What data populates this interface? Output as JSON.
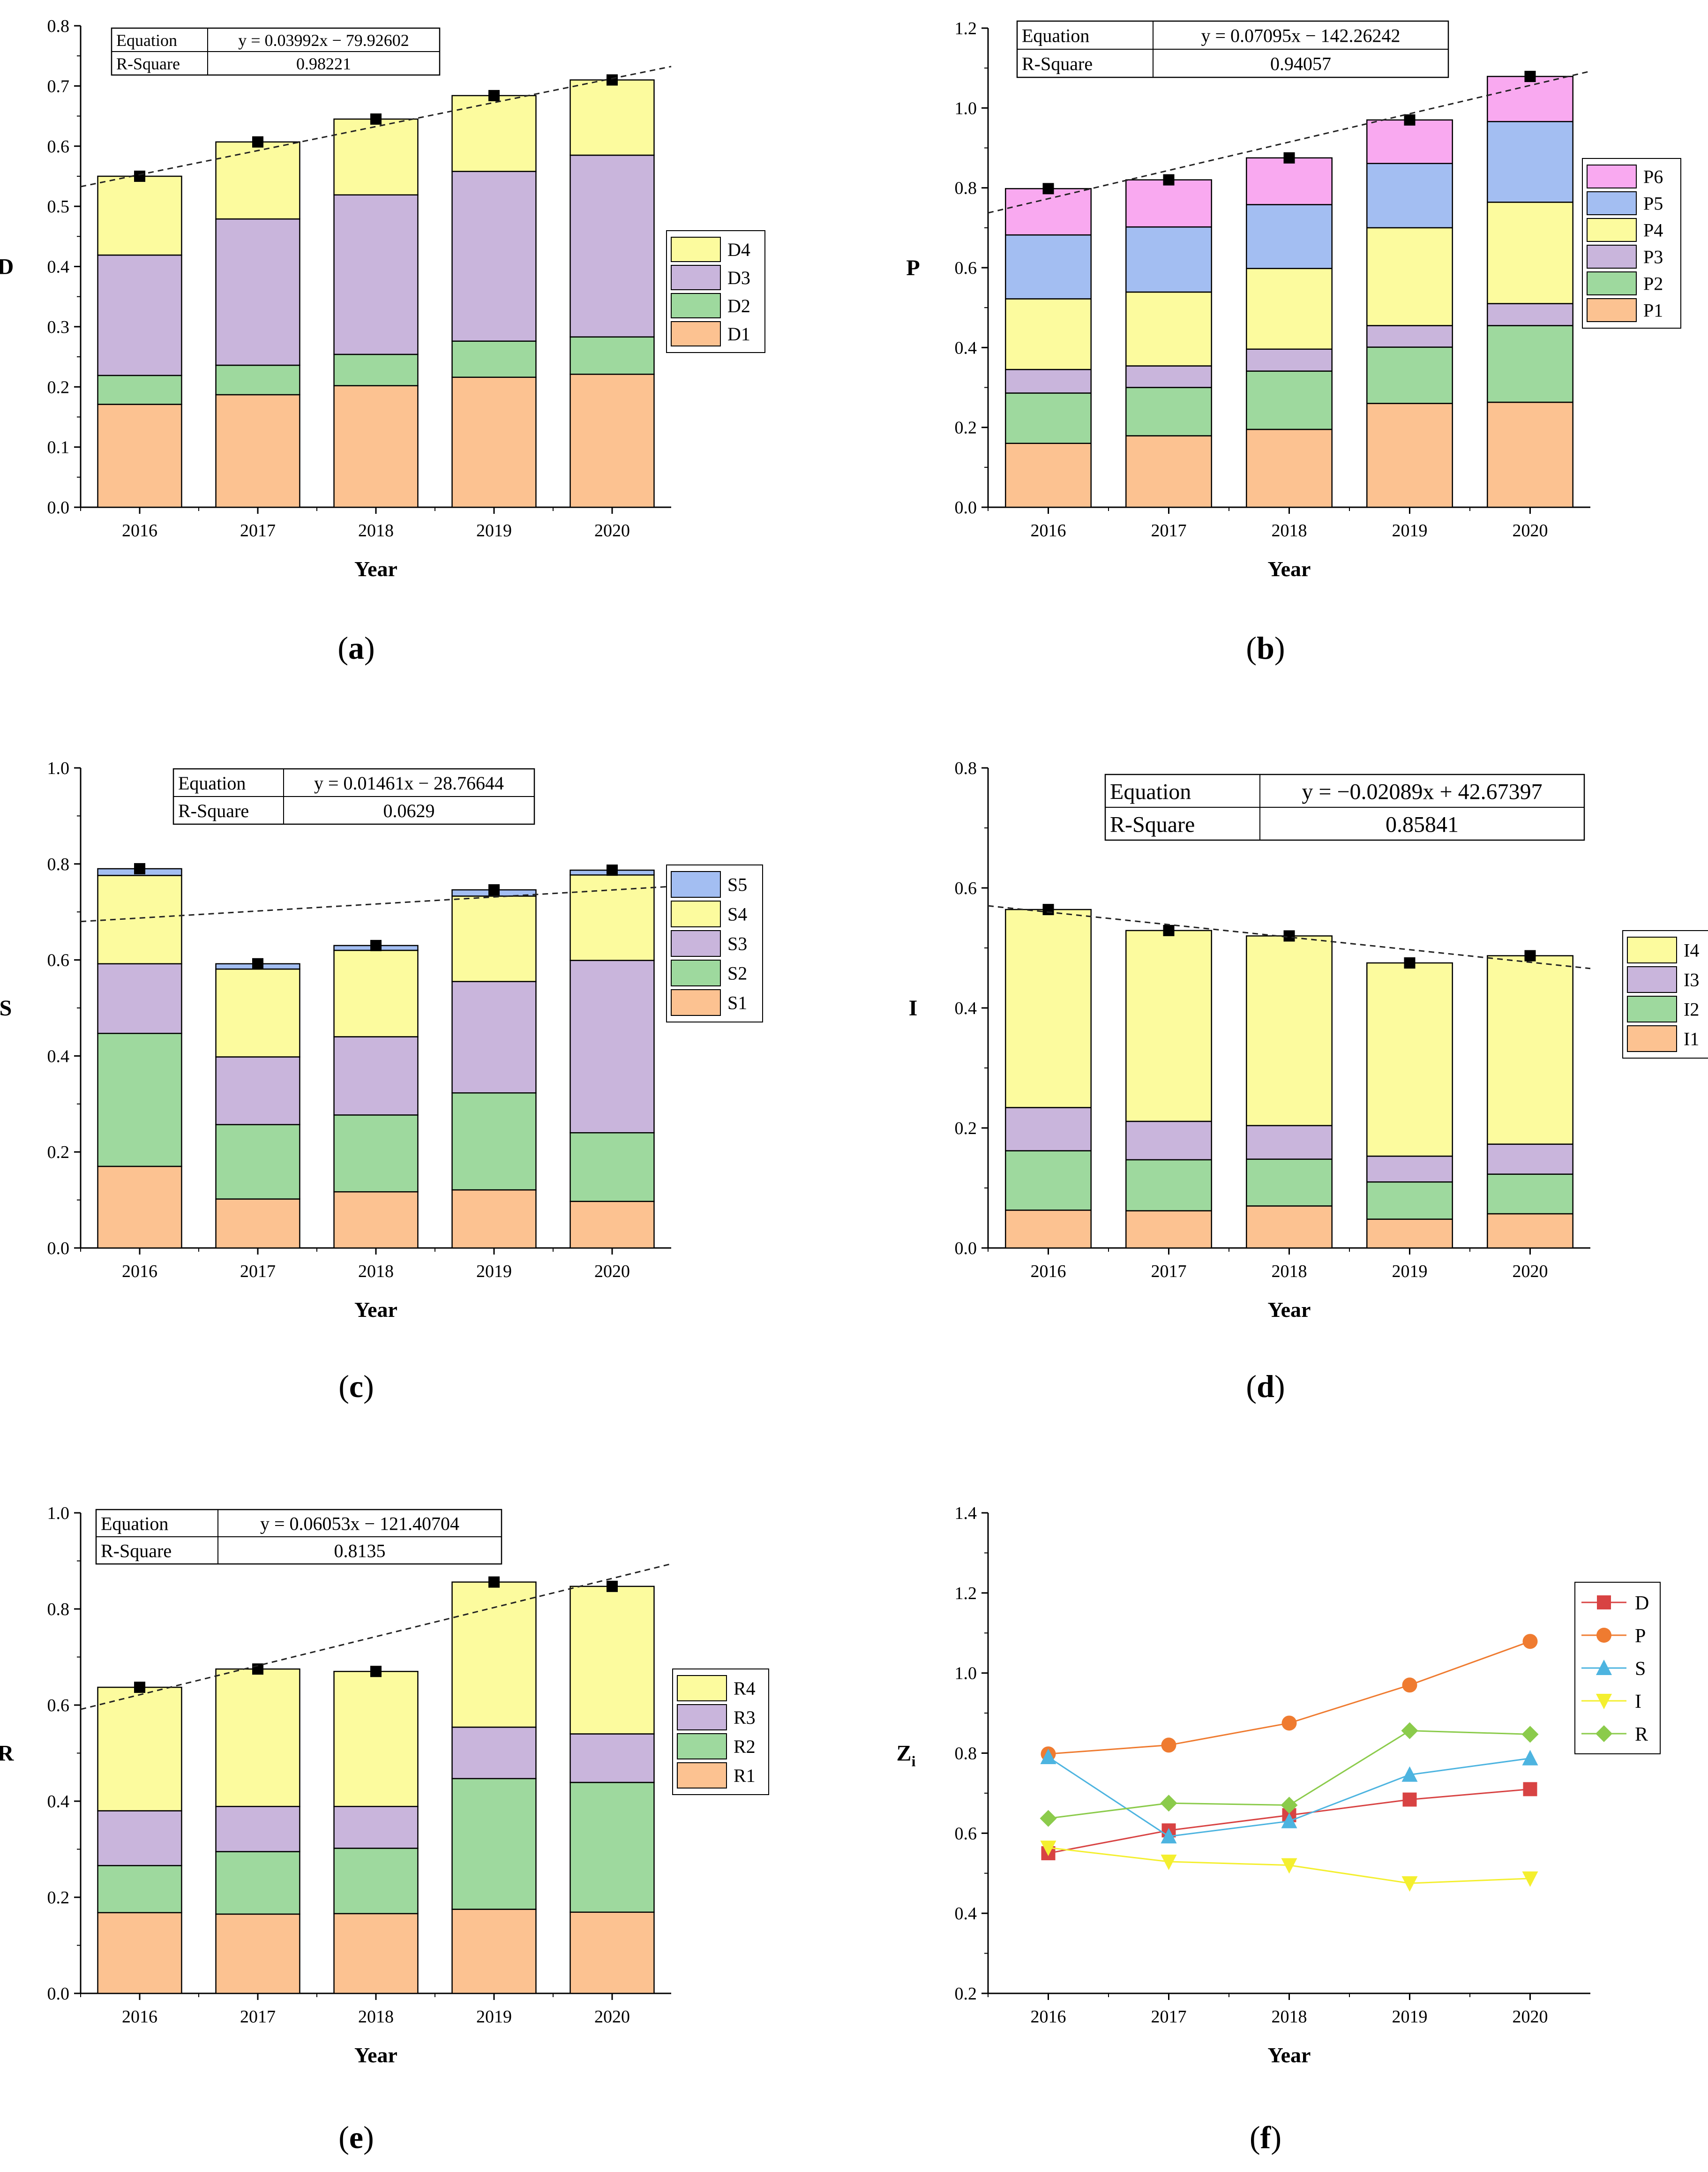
{
  "figure": {
    "panel_letters": [
      "a",
      "b",
      "c",
      "d",
      "e",
      "f"
    ],
    "colors": {
      "layer1": "#FCC291",
      "layer2": "#9ED99E",
      "layer3": "#C9B5DC",
      "layer4": "#FCFB9E",
      "layer5": "#A3BEF2",
      "layer6": "#F9A9F0",
      "line_D": "#D84343",
      "line_P": "#EF7B30",
      "line_S": "#4DB4E0",
      "line_I": "#F4EF2F",
      "line_R": "#8BCB4B"
    }
  },
  "chart_data": [
    {
      "id": "a",
      "type": "bar",
      "stacked": true,
      "categories": [
        "2016",
        "2017",
        "2018",
        "2019",
        "2020"
      ],
      "series": [
        {
          "name": "D1",
          "values": [
            0.171,
            0.187,
            0.202,
            0.216,
            0.221
          ]
        },
        {
          "name": "D2",
          "values": [
            0.048,
            0.049,
            0.052,
            0.06,
            0.062
          ]
        },
        {
          "name": "D3",
          "values": [
            0.2,
            0.243,
            0.265,
            0.282,
            0.302
          ]
        },
        {
          "name": "D4",
          "values": [
            0.131,
            0.128,
            0.126,
            0.126,
            0.125
          ]
        }
      ],
      "totals": [
        0.55,
        0.607,
        0.645,
        0.684,
        0.71
      ],
      "xlabel": "Year",
      "ylabel": "D",
      "ylim": [
        0,
        0.8
      ],
      "yticks": [
        "0.0",
        "0.1",
        "0.2",
        "0.3",
        "0.4",
        "0.5",
        "0.6",
        "0.7",
        "0.8"
      ],
      "fit": {
        "slope": 0.03992,
        "intercept": -79.92602
      },
      "equation_table": {
        "h1": "Equation",
        "v1": "y = 0.03992x − 79.92602",
        "h2": "R-Square",
        "v2": "0.98221"
      },
      "legend_position": "right"
    },
    {
      "id": "b",
      "type": "bar",
      "stacked": true,
      "categories": [
        "2016",
        "2017",
        "2018",
        "2019",
        "2020"
      ],
      "series": [
        {
          "name": "P1",
          "values": [
            0.16,
            0.179,
            0.195,
            0.26,
            0.263
          ]
        },
        {
          "name": "P2",
          "values": [
            0.126,
            0.121,
            0.146,
            0.141,
            0.192
          ]
        },
        {
          "name": "P3",
          "values": [
            0.059,
            0.054,
            0.055,
            0.054,
            0.055
          ]
        },
        {
          "name": "P4",
          "values": [
            0.177,
            0.185,
            0.202,
            0.245,
            0.254
          ]
        },
        {
          "name": "P5",
          "values": [
            0.16,
            0.163,
            0.16,
            0.161,
            0.202
          ]
        },
        {
          "name": "P6",
          "values": [
            0.116,
            0.118,
            0.117,
            0.109,
            0.113
          ]
        }
      ],
      "totals": [
        0.798,
        0.82,
        0.875,
        0.97,
        1.079
      ],
      "xlabel": "Year",
      "ylabel": "P",
      "ylim": [
        0,
        1.2
      ],
      "yticks": [
        "0.0",
        "0.2",
        "0.4",
        "0.6",
        "0.8",
        "1.0",
        "1.2"
      ],
      "fit": {
        "slope": 0.07095,
        "intercept": -142.26242
      },
      "equation_table": {
        "h1": "Equation",
        "v1": "y = 0.07095x − 142.26242",
        "h2": "R-Square",
        "v2": "0.94057"
      },
      "legend_position": "right"
    },
    {
      "id": "c",
      "type": "bar",
      "stacked": true,
      "categories": [
        "2016",
        "2017",
        "2018",
        "2019",
        "2020"
      ],
      "series": [
        {
          "name": "S1",
          "values": [
            0.17,
            0.102,
            0.117,
            0.121,
            0.097
          ]
        },
        {
          "name": "S2",
          "values": [
            0.277,
            0.155,
            0.16,
            0.202,
            0.143
          ]
        },
        {
          "name": "S3",
          "values": [
            0.145,
            0.141,
            0.163,
            0.232,
            0.359
          ]
        },
        {
          "name": "S4",
          "values": [
            0.184,
            0.183,
            0.18,
            0.178,
            0.178
          ]
        },
        {
          "name": "S5",
          "values": [
            0.014,
            0.011,
            0.01,
            0.013,
            0.01
          ]
        }
      ],
      "totals": [
        0.79,
        0.592,
        0.63,
        0.746,
        0.787
      ],
      "xlabel": "Year",
      "ylabel": "S",
      "ylim": [
        0,
        1.0
      ],
      "yticks": [
        "0.0",
        "0.2",
        "0.4",
        "0.6",
        "0.8",
        "1.0"
      ],
      "fit": {
        "slope": 0.01461,
        "intercept": -28.76644
      },
      "equation_table": {
        "h1": "Equation",
        "v1": "y = 0.01461x − 28.76644",
        "h2": "R-Square",
        "v2": "0.0629"
      },
      "legend_position": "right"
    },
    {
      "id": "d",
      "type": "bar",
      "stacked": true,
      "categories": [
        "2016",
        "2017",
        "2018",
        "2019",
        "2020"
      ],
      "series": [
        {
          "name": "I1",
          "values": [
            0.063,
            0.062,
            0.07,
            0.048,
            0.057
          ]
        },
        {
          "name": "I2",
          "values": [
            0.099,
            0.085,
            0.078,
            0.062,
            0.066
          ]
        },
        {
          "name": "I3",
          "values": [
            0.072,
            0.064,
            0.056,
            0.043,
            0.05
          ]
        },
        {
          "name": "I4",
          "values": [
            0.33,
            0.318,
            0.316,
            0.322,
            0.314
          ]
        }
      ],
      "totals": [
        0.564,
        0.529,
        0.52,
        0.475,
        0.487
      ],
      "xlabel": "Year",
      "ylabel": "I",
      "ylim": [
        0,
        0.8
      ],
      "yticks": [
        "0.0",
        "0.2",
        "0.4",
        "0.6",
        "0.8"
      ],
      "fit": {
        "slope": -0.02089,
        "intercept": 42.67397
      },
      "equation_table": {
        "h1": "Equation",
        "v1": "y = −0.02089x + 42.67397",
        "h2": "R-Square",
        "v2": "0.85841"
      },
      "legend_position": "right"
    },
    {
      "id": "e",
      "type": "bar",
      "stacked": true,
      "categories": [
        "2016",
        "2017",
        "2018",
        "2019",
        "2020"
      ],
      "series": [
        {
          "name": "R1",
          "values": [
            0.168,
            0.165,
            0.166,
            0.175,
            0.169
          ]
        },
        {
          "name": "R2",
          "values": [
            0.098,
            0.13,
            0.136,
            0.272,
            0.27
          ]
        },
        {
          "name": "R3",
          "values": [
            0.114,
            0.094,
            0.087,
            0.107,
            0.101
          ]
        },
        {
          "name": "R4",
          "values": [
            0.257,
            0.286,
            0.281,
            0.302,
            0.307
          ]
        }
      ],
      "totals": [
        0.637,
        0.675,
        0.67,
        0.856,
        0.847
      ],
      "xlabel": "Year",
      "ylabel": "R",
      "ylim": [
        0,
        1.0
      ],
      "yticks": [
        "0.0",
        "0.2",
        "0.4",
        "0.6",
        "0.8",
        "1.0"
      ],
      "fit": {
        "slope": 0.06053,
        "intercept": -121.40704
      },
      "equation_table": {
        "h1": "Equation",
        "v1": "y = 0.06053x − 121.40704",
        "h2": "R-Square",
        "v2": "0.8135"
      },
      "legend_position": "right"
    },
    {
      "id": "f",
      "type": "line",
      "categories": [
        "2016",
        "2017",
        "2018",
        "2019",
        "2020"
      ],
      "series": [
        {
          "name": "D",
          "marker": "square",
          "values": [
            0.55,
            0.607,
            0.645,
            0.684,
            0.71
          ]
        },
        {
          "name": "P",
          "marker": "circle",
          "values": [
            0.798,
            0.82,
            0.875,
            0.97,
            1.079
          ]
        },
        {
          "name": "S",
          "marker": "triangle-up",
          "values": [
            0.79,
            0.592,
            0.63,
            0.746,
            0.787
          ]
        },
        {
          "name": "I",
          "marker": "triangle-down",
          "values": [
            0.564,
            0.529,
            0.52,
            0.475,
            0.487
          ]
        },
        {
          "name": "R",
          "marker": "diamond",
          "values": [
            0.637,
            0.675,
            0.67,
            0.856,
            0.847
          ]
        }
      ],
      "xlabel": "Year",
      "ylabel_main": "Z",
      "ylabel_sub": "i",
      "ylim": [
        0.2,
        1.4
      ],
      "yticks": [
        "0.2",
        "0.4",
        "0.6",
        "0.8",
        "1.0",
        "1.2",
        "1.4"
      ],
      "legend_position": "right"
    }
  ]
}
